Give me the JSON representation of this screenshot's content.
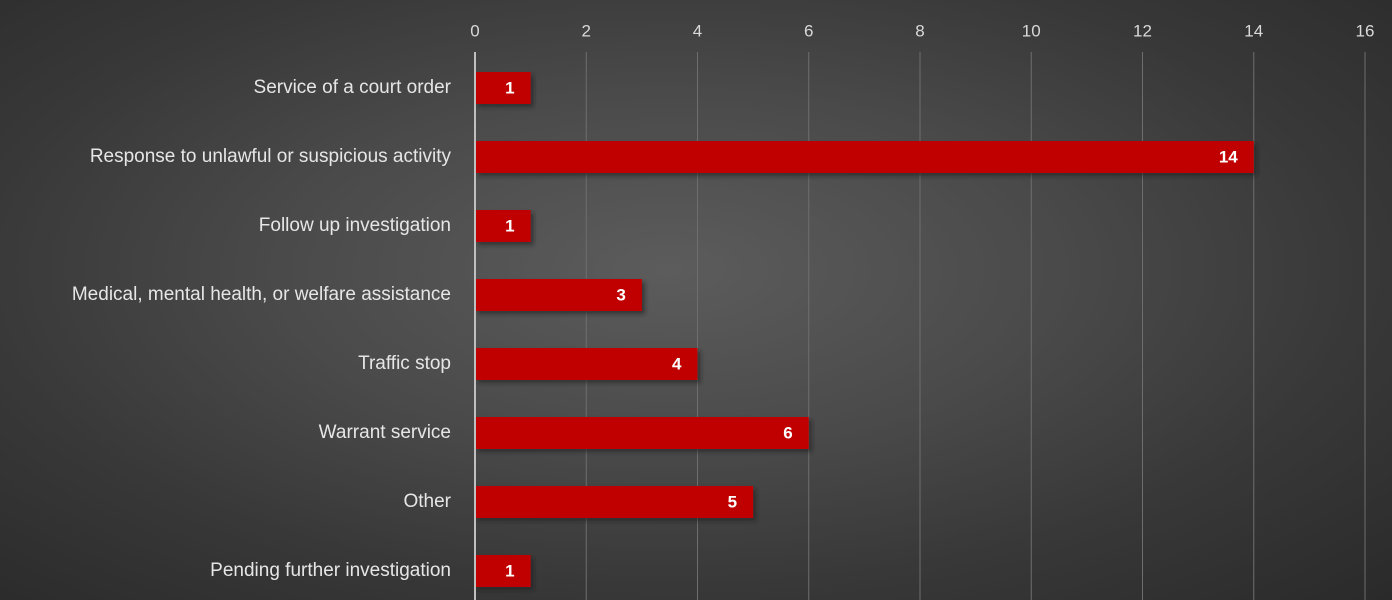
{
  "chart_data": {
    "type": "bar",
    "orientation": "horizontal",
    "categories": [
      "Service of a court order",
      "Response to unlawful or suspicious activity",
      "Follow up investigation",
      "Medical, mental health, or welfare assistance",
      "Traffic stop",
      "Warrant service",
      "Other",
      "Pending further investigation"
    ],
    "values": [
      1,
      14,
      1,
      3,
      4,
      6,
      5,
      1
    ],
    "title": "",
    "xlabel": "",
    "ylabel": "",
    "xlim": [
      0,
      16
    ],
    "x_ticks": [
      0,
      2,
      4,
      6,
      8,
      10,
      12,
      14,
      16
    ],
    "x_axis_position": "top",
    "grid": true,
    "legend": "none",
    "data_labels": true,
    "colors": {
      "bar": "#c00000",
      "bar_shadow": "#1a1a1a",
      "text": "#e6e6e6",
      "bar_label": "#ffffff",
      "gridline": "#6e6e6e",
      "axis": "#bfbfbf"
    }
  }
}
